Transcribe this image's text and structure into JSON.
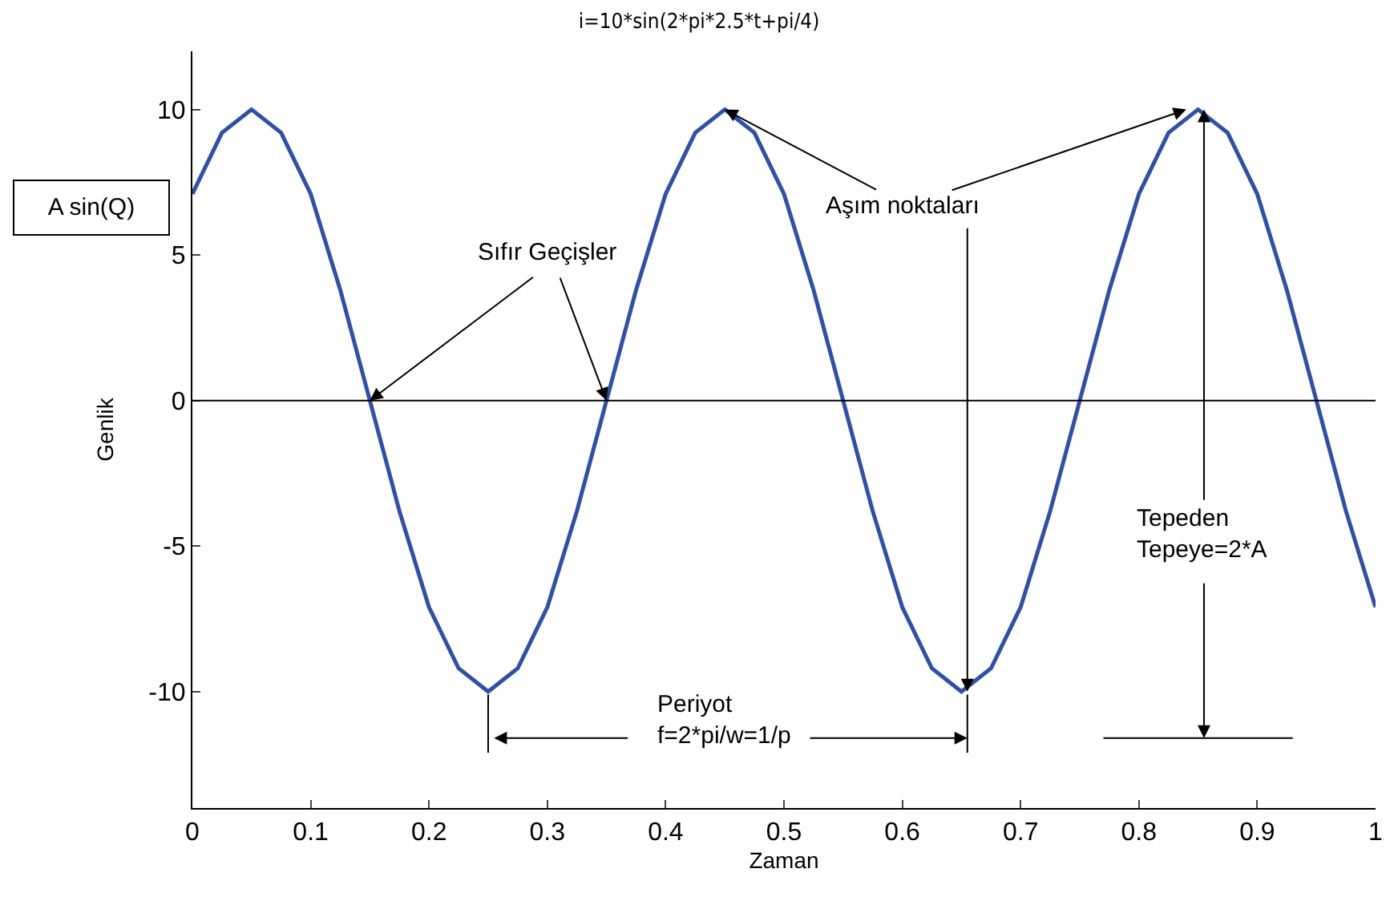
{
  "chart_data": {
    "type": "line",
    "title": "i=10*sin(2*pi*2.5*t+pi/4)",
    "xlabel": "Zaman",
    "ylabel": "Genlik",
    "x": [
      0,
      0.025,
      0.05,
      0.075,
      0.1,
      0.125,
      0.15,
      0.175,
      0.2,
      0.225,
      0.25,
      0.275,
      0.3,
      0.325,
      0.35,
      0.375,
      0.4,
      0.425,
      0.45,
      0.475,
      0.5,
      0.525,
      0.55,
      0.575,
      0.6,
      0.625,
      0.65,
      0.675,
      0.7,
      0.725,
      0.75,
      0.775,
      0.8,
      0.825,
      0.85,
      0.875,
      0.9,
      0.925,
      0.95,
      0.975,
      1
    ],
    "series": [
      {
        "color": "#2f50a8",
        "values": [
          7.1,
          9.2,
          10,
          9.2,
          7.1,
          3.8,
          0,
          -3.8,
          -7.1,
          -9.2,
          -10,
          -9.2,
          -7.1,
          -3.8,
          0,
          3.8,
          7.1,
          9.2,
          10,
          9.2,
          7.1,
          3.8,
          0,
          -3.8,
          -7.1,
          -9.2,
          -10,
          -9.2,
          -7.1,
          -3.8,
          0,
          3.8,
          7.1,
          9.2,
          10,
          9.2,
          7.1,
          3.8,
          0,
          -3.8,
          -7.1
        ]
      }
    ],
    "xlim": [
      0,
      1
    ],
    "xticks": [
      0,
      0.1,
      0.2,
      0.3,
      0.4,
      0.5,
      0.6,
      0.7,
      0.8,
      0.9,
      1
    ],
    "ylim": [
      -14,
      12
    ],
    "yticks": [
      -10,
      -5,
      0,
      5,
      10
    ],
    "ref_lines": [
      {
        "axis": "y",
        "value": 0,
        "color": "#000000"
      }
    ],
    "annotations": [
      "A sin(Q)",
      {
        "text": "Sıfır Geçişler",
        "x": 0.15,
        "y": 0
      },
      {
        "text": "Aşım noktaları",
        "x": 0.45,
        "y": 10
      },
      "Periyot\nf=2*pi/w=1/p",
      {
        "text": "Tepeden\nTepeye=2*A",
        "x": 0.855,
        "y": 10
      }
    ],
    "grid": false,
    "marker": "none",
    "line_style": "solid"
  }
}
